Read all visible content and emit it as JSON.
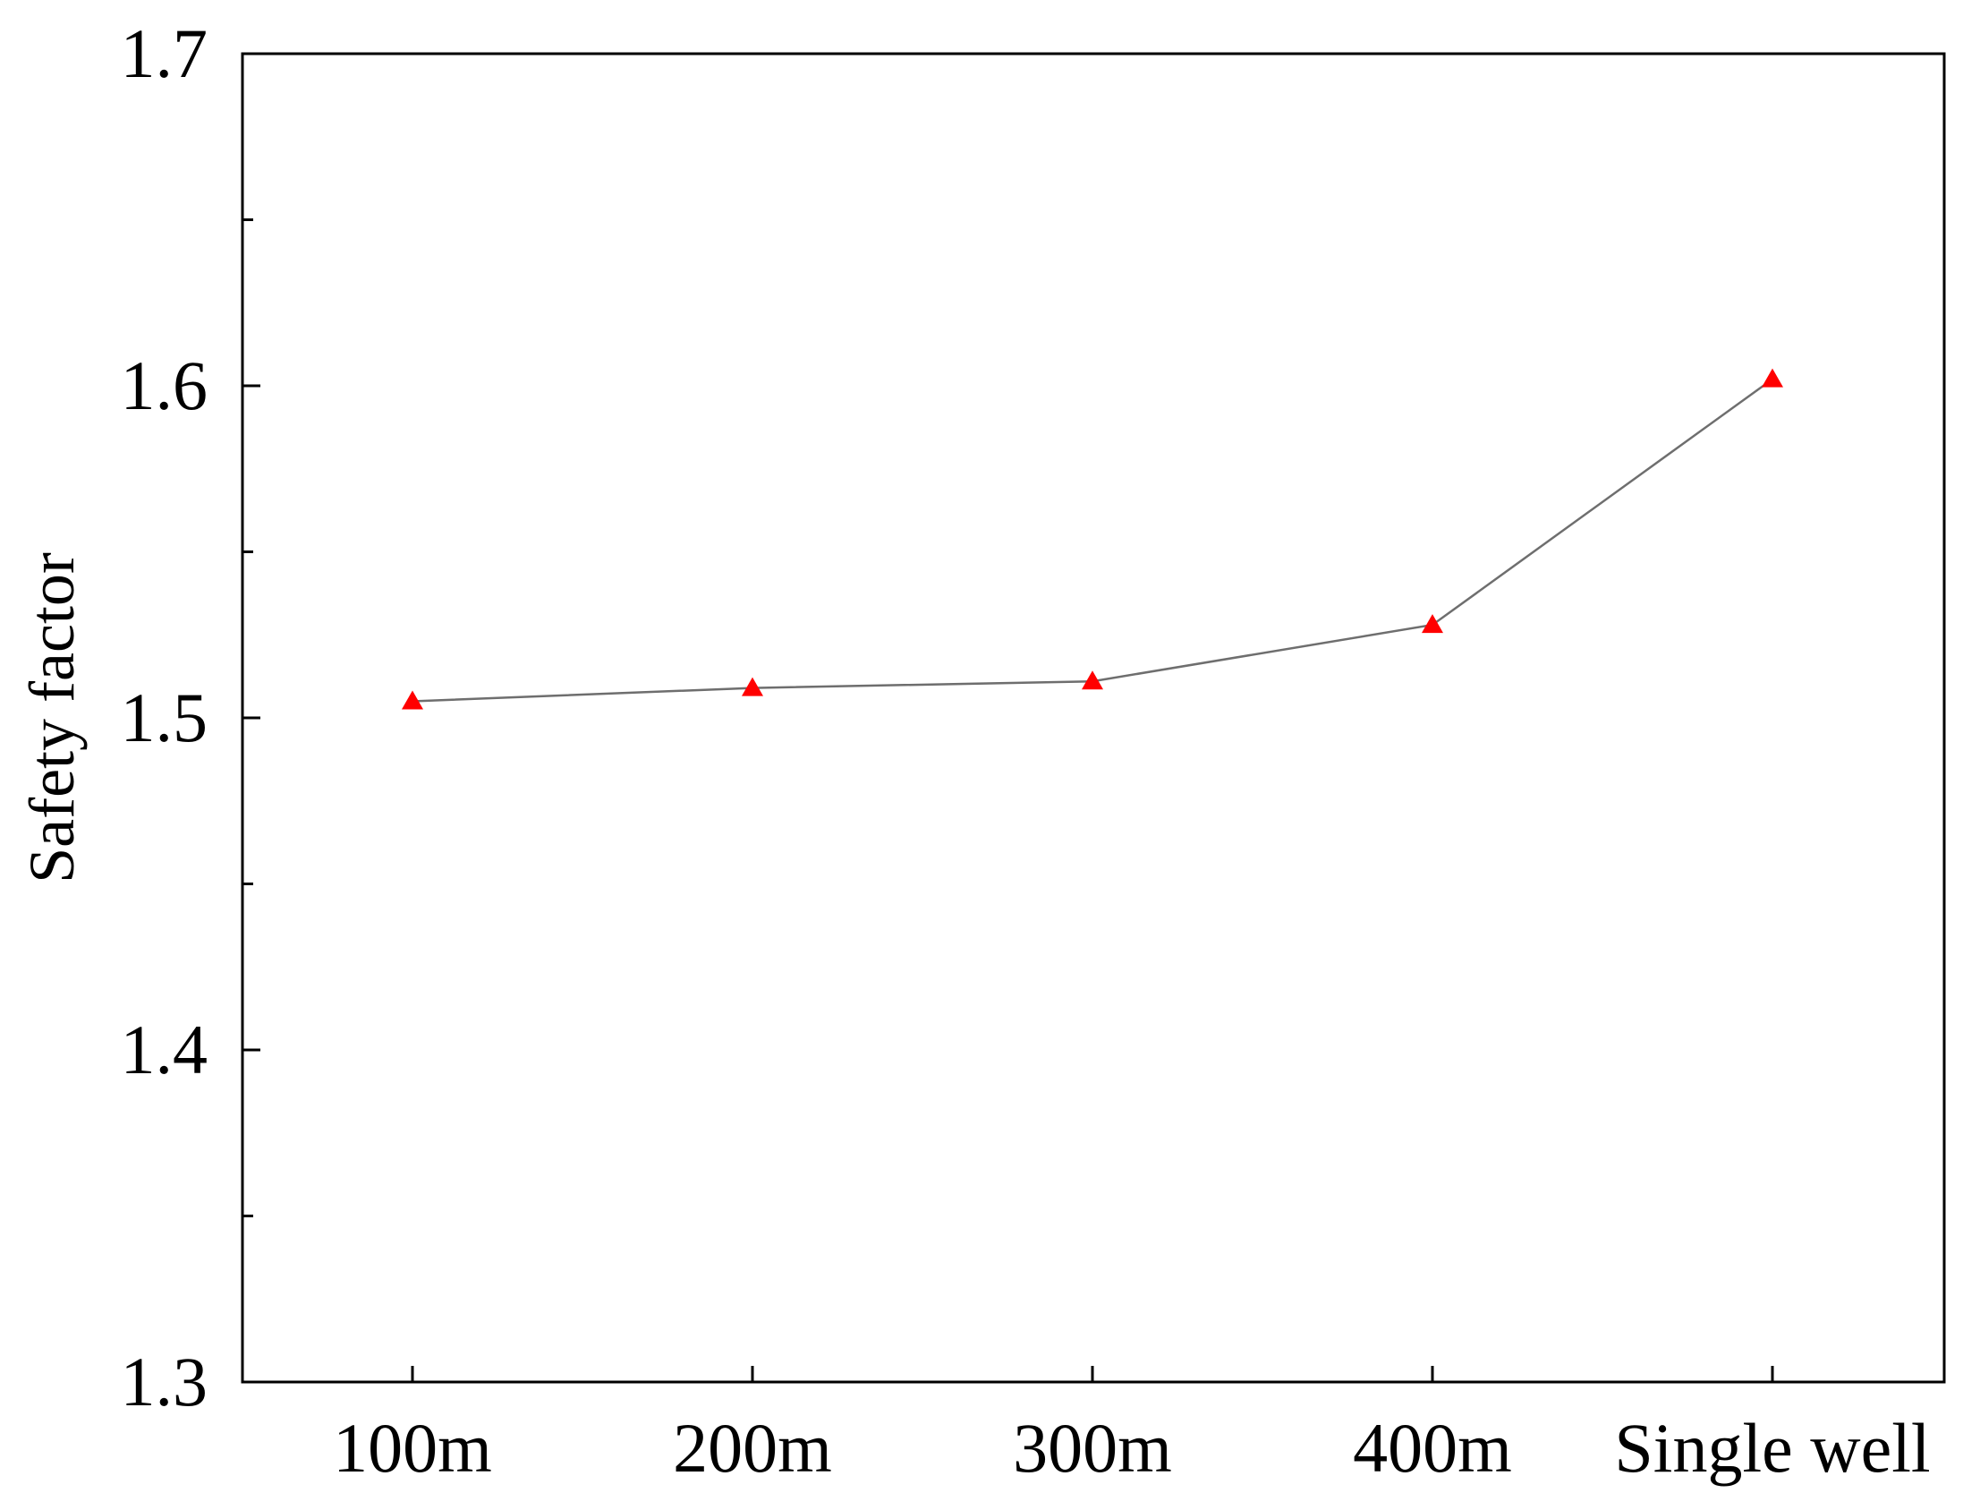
{
  "chart_data": {
    "type": "line",
    "categories": [
      "100m",
      "200m",
      "300m",
      "400m",
      "Single well"
    ],
    "series": [
      {
        "values": [
          1.505,
          1.509,
          1.511,
          1.528,
          1.602
        ],
        "color": "#ff0000",
        "line_color": "#6e6e6e",
        "marker": "triangle"
      }
    ],
    "title": "",
    "xlabel": "",
    "ylabel": "Safety factor",
    "ylim": [
      1.3,
      1.7
    ],
    "yticks": [
      1.3,
      1.4,
      1.5,
      1.6,
      1.7
    ],
    "ytick_labels": [
      "1.3",
      "1.4",
      "1.5",
      "1.6",
      "1.7"
    ],
    "y_minor_step": 0.05,
    "grid": false,
    "legend": "none"
  }
}
